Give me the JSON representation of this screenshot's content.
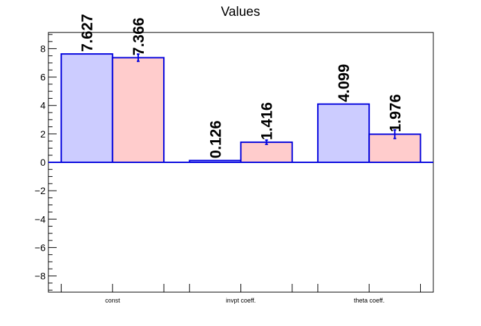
{
  "chart_data": {
    "type": "bar",
    "title": "Values",
    "xlabel": "",
    "ylabel": "",
    "categories": [
      "const",
      "invpt coeff.",
      "theta coeff."
    ],
    "series": [
      {
        "values": [
          7.627,
          0.126,
          4.099
        ],
        "labels": [
          "7.627",
          "0.126",
          "4.099"
        ],
        "fill_color": "#ccccff",
        "edge_color": "#0000dd",
        "errors": [
          0,
          0,
          0
        ]
      },
      {
        "values": [
          7.366,
          1.416,
          1.976
        ],
        "labels": [
          "7.366",
          "1.416",
          "1.976"
        ],
        "fill_color": "#ffcccc",
        "edge_color": "#0000dd",
        "errors": [
          0.25,
          0.15,
          0.3
        ]
      }
    ],
    "ylim": [
      -9.14,
      9.14
    ],
    "yticks": [
      -8,
      -6,
      -4,
      -2,
      0,
      2,
      4,
      6,
      8
    ],
    "ytick_labels": [
      "−8",
      "−6",
      "−4",
      "−2",
      "0",
      "2",
      "4",
      "6",
      "8"
    ],
    "zero_line_color": "#0000dd",
    "grid": false,
    "legend": "none"
  }
}
